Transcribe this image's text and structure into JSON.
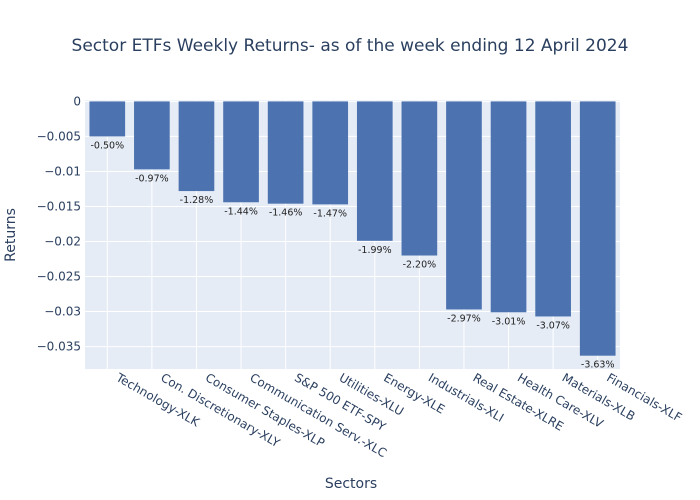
{
  "chart_data": {
    "type": "bar",
    "title": "Sector ETFs Weekly Returns- as of the week ending 12 April 2024",
    "xlabel": "Sectors",
    "ylabel": "Returns",
    "categories": [
      "Technology-XLK",
      "Con. Discretionary-XLY",
      "Consumer Staples-XLP",
      "Communication Serv.-XLC",
      "S&P 500 ETF-SPY",
      "Utilities-XLU",
      "Energy-XLE",
      "Industrials-XLI",
      "Real Estate-XLRE",
      "Health Care-XLV",
      "Materials-XLB",
      "Financials-XLF"
    ],
    "values": [
      -0.005,
      -0.0097,
      -0.0128,
      -0.0144,
      -0.0146,
      -0.0147,
      -0.0199,
      -0.022,
      -0.0297,
      -0.0301,
      -0.0307,
      -0.0363
    ],
    "data_labels": [
      "-0.50%",
      "-0.97%",
      "-1.28%",
      "-1.44%",
      "-1.46%",
      "-1.47%",
      "-1.99%",
      "-2.20%",
      "-2.97%",
      "-3.01%",
      "-3.07%",
      "-3.63%"
    ],
    "yticks": [
      0,
      -0.005,
      -0.01,
      -0.015,
      -0.02,
      -0.025,
      -0.03,
      -0.035
    ],
    "ytick_labels": [
      "0",
      "−0.005",
      "−0.01",
      "−0.015",
      "−0.02",
      "−0.025",
      "−0.03",
      "−0.035"
    ],
    "ylim": [
      -0.0382,
      0.0002
    ],
    "grid": true,
    "legend": false,
    "colors": {
      "bar": "#4c72b0",
      "plot_bg": "#e5ecf6",
      "grid": "#ffffff",
      "text": "#2a3f5f"
    }
  }
}
